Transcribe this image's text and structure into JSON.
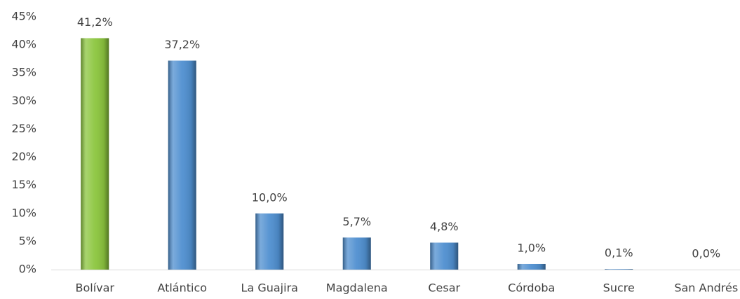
{
  "chart_data": {
    "type": "bar",
    "categories": [
      "Bolívar",
      "Atlántico",
      "La Guajira",
      "Magdalena",
      "Cesar",
      "Córdoba",
      "Sucre",
      "San Andrés"
    ],
    "values": [
      41.2,
      37.2,
      10.0,
      5.7,
      4.8,
      1.0,
      0.1,
      0.0
    ],
    "value_labels": [
      "41,2%",
      "37,2%",
      "10,0%",
      "5,7%",
      "4,8%",
      "1,0%",
      "0,1%",
      "0,0%"
    ],
    "colors": [
      "#8cc63e",
      "#4f8fd0",
      "#4f8fd0",
      "#4f8fd0",
      "#4f8fd0",
      "#4f8fd0",
      "#4f8fd0",
      "#4f8fd0"
    ],
    "ylim": [
      0,
      45
    ],
    "yticks": [
      {
        "value": 0,
        "label": "0%"
      },
      {
        "value": 5,
        "label": "5%"
      },
      {
        "value": 10,
        "label": "10%"
      },
      {
        "value": 15,
        "label": "15%"
      },
      {
        "value": 20,
        "label": "20%"
      },
      {
        "value": 25,
        "label": "25%"
      },
      {
        "value": 30,
        "label": "30%"
      },
      {
        "value": 35,
        "label": "35%"
      },
      {
        "value": 40,
        "label": "40%"
      },
      {
        "value": 45,
        "label": "45%"
      }
    ],
    "grid": false
  }
}
